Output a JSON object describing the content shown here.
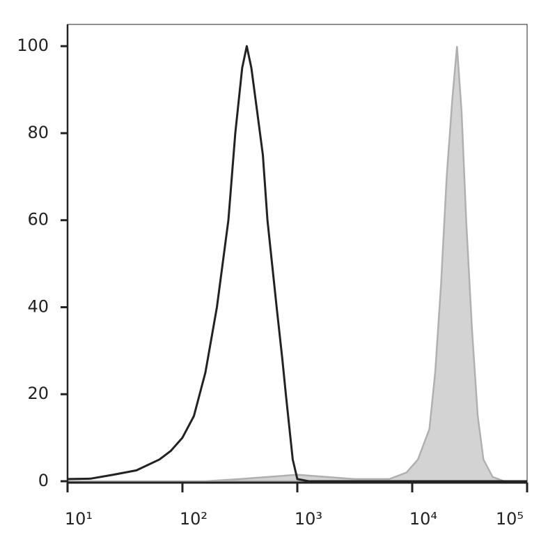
{
  "chart_data": {
    "type": "histogram-overlay",
    "xscale": "log",
    "xlim": [
      10,
      100000
    ],
    "xticks": [
      {
        "value": 10,
        "label": "10¹"
      },
      {
        "value": 100,
        "label": "10²"
      },
      {
        "value": 1000,
        "label": "10³"
      },
      {
        "value": 10000,
        "label": "10⁴"
      },
      {
        "value": 100000,
        "label": "10⁵"
      }
    ],
    "ylim": [
      0,
      105
    ],
    "yticks": [
      0,
      20,
      40,
      60,
      80,
      100
    ],
    "grid": false,
    "series": [
      {
        "color": "#222222",
        "filled": false,
        "x": [
          10,
          15.85,
          25.12,
          39.81,
          63.1,
          79.43,
          100,
          125.9,
          158.5,
          199.5,
          251.2,
          288.4,
          331.1,
          363.1,
          398.1,
          446.7,
          501.2,
          549.5,
          602.6,
          660.7,
          741.3,
          794.3,
          912,
          1000,
          1259,
          10000,
          100000
        ],
        "values": [
          0.5,
          0.6,
          1.5,
          2.5,
          5,
          7,
          10,
          15,
          25,
          40,
          60,
          80,
          95,
          100,
          95,
          85,
          75,
          60,
          50,
          40,
          28,
          20,
          5,
          0.5,
          0,
          0,
          0
        ]
      },
      {
        "color": "#b0b0b0",
        "filled": true,
        "fill": "#d3d3d3",
        "x": [
          10,
          158.5,
          316.2,
          1000,
          3162,
          6310,
          8913,
          11220,
          14125,
          15849,
          17783,
          19953,
          22387,
          24547,
          26915,
          29512,
          33113,
          37154,
          41687,
          50119,
          63096,
          100000
        ],
        "values": [
          0,
          0,
          0.5,
          1.5,
          0.5,
          0.5,
          2,
          5,
          12,
          25,
          45,
          70,
          88,
          100,
          85,
          60,
          35,
          15,
          5,
          1,
          0,
          0
        ]
      }
    ]
  }
}
